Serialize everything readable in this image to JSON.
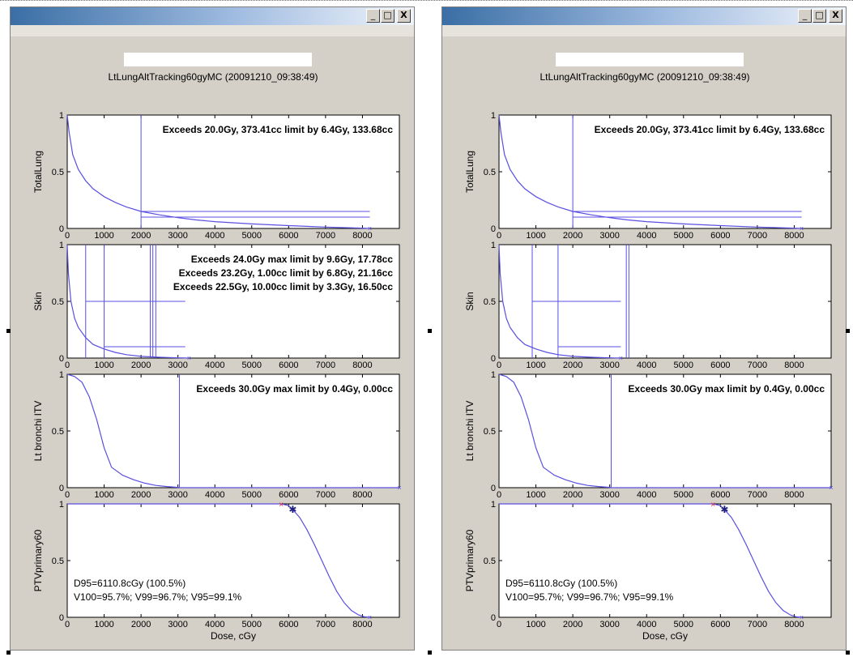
{
  "windows": [
    {
      "id": "left",
      "buttons": {
        "minimize": "_",
        "maximize": "□",
        "close": "X"
      },
      "figure_title": "LtLungAltTracking60gyMC (20091210_09:38:49)",
      "xlabel": "Dose, cGy",
      "panels": [
        {
          "ylabel": "TotalLung",
          "annotations": [
            "Exceeds 20.0Gy, 373.41cc limit by 6.4Gy, 133.68cc"
          ],
          "vlines": [
            2000
          ],
          "hsegments": [
            [
              2000,
              8200,
              0.15
            ],
            [
              2000,
              8200,
              0.1
            ]
          ]
        },
        {
          "ylabel": "Skin",
          "annotations": [
            "Exceeds 24.0Gy max limit by 9.6Gy, 17.78cc",
            "Exceeds 23.2Gy, 1.00cc limit by 6.8Gy, 21.16cc",
            "Exceeds 22.5Gy, 10.00cc limit by 3.3Gy, 16.50cc"
          ],
          "vlines": [
            500,
            1000,
            2250,
            2320,
            2400
          ],
          "hsegments": [
            [
              500,
              3200,
              0.5
            ],
            [
              1000,
              3200,
              0.1
            ]
          ]
        },
        {
          "ylabel": "Lt bronchi ITV",
          "annotations": [
            "Exceeds 30.0Gy max limit by 0.4Gy, 0.00cc"
          ],
          "vlines": [
            3040
          ],
          "hsegments": []
        },
        {
          "ylabel": "PTVprimary60",
          "annotations": [],
          "stats": [
            "D95=6110.8cGy (100.5%)",
            "V100=95.7%;  V99=96.7%;  V95=99.1%"
          ],
          "vlines": [],
          "hsegments": []
        }
      ]
    },
    {
      "id": "right",
      "buttons": {
        "minimize": "_",
        "maximize": "□",
        "close": "X"
      },
      "figure_title": "LtLungAltTracking60gyMC (20091210_09:38:49)",
      "xlabel": "Dose, cGy",
      "panels": [
        {
          "ylabel": "TotalLung",
          "annotations": [
            "Exceeds 20.0Gy, 373.41cc limit by 6.4Gy, 133.68cc"
          ],
          "vlines": [
            2000
          ],
          "hsegments": [
            [
              2000,
              8200,
              0.15
            ],
            [
              2000,
              8200,
              0.1
            ]
          ]
        },
        {
          "ylabel": "Skin",
          "annotations": [],
          "vlines": [
            900,
            1600,
            3450,
            3520
          ],
          "hsegments": [
            [
              900,
              3300,
              0.5
            ],
            [
              1600,
              3300,
              0.1
            ]
          ]
        },
        {
          "ylabel": "Lt bronchi ITV",
          "annotations": [
            "Exceeds 30.0Gy max limit by 0.4Gy, 0.00cc"
          ],
          "vlines": [
            3040
          ],
          "hsegments": []
        },
        {
          "ylabel": "PTVprimary60",
          "annotations": [],
          "stats": [
            "D95=6110.8cGy (100.5%)",
            "V100=95.7%;  V99=96.7%;  V95=99.1%"
          ],
          "vlines": [],
          "hsegments": []
        }
      ]
    }
  ],
  "chart_data": {
    "type": "line",
    "xlim": [
      0,
      9000
    ],
    "ylim": [
      0,
      1
    ],
    "xticks": [
      0,
      1000,
      2000,
      3000,
      4000,
      5000,
      6000,
      7000,
      8000
    ],
    "yticks": [
      0,
      0.5,
      1
    ],
    "ytick_labels": [
      "0",
      "0.5",
      "1"
    ],
    "grid": false,
    "xlabel": "Dose, cGy",
    "line_color": "#5a4fe0",
    "series": [
      {
        "panel": "TotalLung",
        "x": [
          0,
          50,
          150,
          300,
          500,
          700,
          1000,
          1300,
          1600,
          2000,
          2500,
          3000,
          3500,
          4000,
          5000,
          6000,
          7000,
          8000,
          8200
        ],
        "y": [
          1.0,
          0.85,
          0.65,
          0.52,
          0.42,
          0.35,
          0.28,
          0.23,
          0.19,
          0.15,
          0.12,
          0.095,
          0.075,
          0.06,
          0.04,
          0.025,
          0.012,
          0.003,
          0.0
        ]
      },
      {
        "panel": "Skin",
        "x": [
          0,
          30,
          100,
          200,
          300,
          500,
          700,
          1000,
          1300,
          1600,
          2000,
          2500,
          3000,
          3300
        ],
        "y": [
          1.0,
          0.75,
          0.5,
          0.35,
          0.27,
          0.18,
          0.12,
          0.08,
          0.05,
          0.03,
          0.015,
          0.007,
          0.002,
          0.0
        ]
      },
      {
        "panel": "Lt bronchi ITV",
        "x": [
          0,
          200,
          400,
          600,
          800,
          1000,
          1200,
          1500,
          1800,
          2100,
          2400,
          2700,
          3000,
          3040,
          9000
        ],
        "y": [
          1.0,
          0.98,
          0.93,
          0.8,
          0.6,
          0.35,
          0.18,
          0.11,
          0.07,
          0.04,
          0.02,
          0.01,
          0.003,
          0.0,
          0.0
        ]
      },
      {
        "panel": "PTVprimary60",
        "x": [
          0,
          5800,
          6000,
          6110,
          6300,
          6500,
          6700,
          6900,
          7100,
          7300,
          7500,
          7700,
          7900,
          8050,
          8200
        ],
        "y": [
          1.0,
          1.0,
          0.985,
          0.95,
          0.88,
          0.77,
          0.64,
          0.5,
          0.36,
          0.23,
          0.13,
          0.06,
          0.02,
          0.005,
          0.0
        ]
      }
    ],
    "markers": [
      {
        "panel": "PTVprimary60",
        "x": 5800,
        "y": 1.0,
        "symbol": "x",
        "color": "#e02020"
      },
      {
        "panel": "PTVprimary60",
        "x": 6110,
        "y": 0.95,
        "symbol": "star",
        "color": "#202080"
      }
    ]
  }
}
